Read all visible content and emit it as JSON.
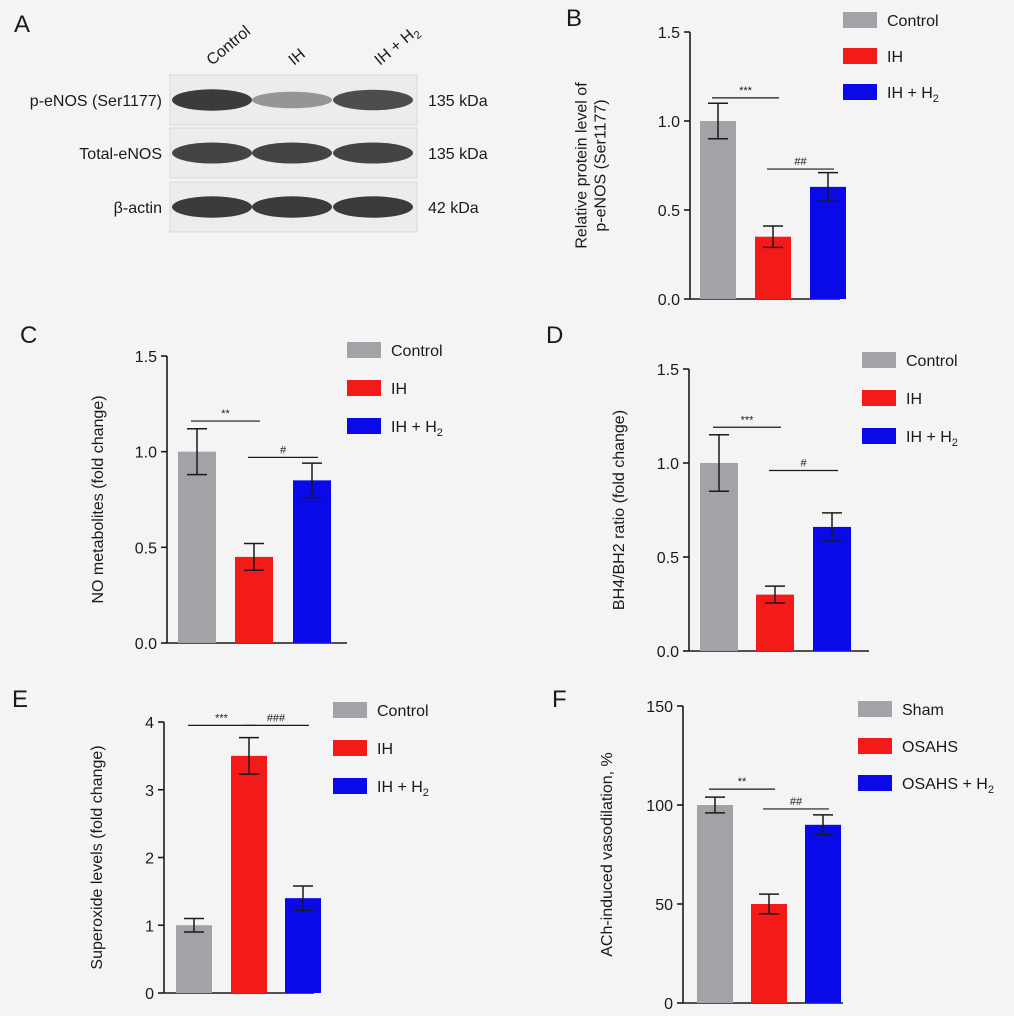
{
  "colors": {
    "control": "#a3a3a7",
    "ih": "#f41a1a",
    "h2": "#0a0ae8",
    "axis": "#1a1a1a"
  },
  "panel_a": {
    "letter": "A",
    "lanes": [
      "Control",
      "IH",
      "IH + H",
      "2"
    ],
    "bands": [
      {
        "protein": "p-eNOS (Ser1177)",
        "mw": "135 kDa",
        "intensity": [
          0.95,
          0.45,
          0.85
        ]
      },
      {
        "protein": "Total-eNOS",
        "mw": "135 kDa",
        "intensity": [
          0.9,
          0.9,
          0.9
        ]
      },
      {
        "protein": "β-actin",
        "mw": "42 kDa",
        "intensity": [
          0.95,
          0.95,
          0.95
        ]
      }
    ]
  },
  "chart_data": [
    {
      "letter": "B",
      "type": "bar",
      "categories": [
        "Control",
        "IH",
        "IH + H2"
      ],
      "values": [
        1.0,
        0.35,
        0.63
      ],
      "errors": [
        0.1,
        0.06,
        0.08
      ],
      "ylim": [
        0,
        1.5
      ],
      "yticks": [
        "0.0",
        "0.5",
        "1.0",
        "1.5"
      ],
      "ylabel": [
        "Relative protein level of",
        "p-eNOS (Ser1177)"
      ],
      "legend": [
        {
          "label": "Control",
          "sub": ""
        },
        {
          "label": "IH",
          "sub": ""
        },
        {
          "label": "IH + H",
          "sub": "2"
        }
      ],
      "sig": [
        {
          "from": 0,
          "to": 1,
          "y": 1.13,
          "label": "***"
        },
        {
          "from": 1,
          "to": 2,
          "y": 0.73,
          "label": "##"
        }
      ]
    },
    {
      "letter": "C",
      "type": "bar",
      "categories": [
        "Control",
        "IH",
        "IH + H2"
      ],
      "values": [
        1.0,
        0.45,
        0.85
      ],
      "errors": [
        0.12,
        0.07,
        0.09
      ],
      "ylim": [
        0,
        1.5
      ],
      "yticks": [
        "0.0",
        "0.5",
        "1.0",
        "1.5"
      ],
      "ylabel": [
        "NO metabolites (fold change)"
      ],
      "legend": [
        {
          "label": "Control",
          "sub": ""
        },
        {
          "label": "IH",
          "sub": ""
        },
        {
          "label": "IH + H",
          "sub": "2"
        }
      ],
      "sig": [
        {
          "from": 0,
          "to": 1,
          "y": 1.16,
          "label": "**"
        },
        {
          "from": 1,
          "to": 2,
          "y": 0.97,
          "label": "#"
        }
      ]
    },
    {
      "letter": "D",
      "type": "bar",
      "categories": [
        "Control",
        "IH",
        "IH + H2"
      ],
      "values": [
        1.0,
        0.3,
        0.66
      ],
      "errors": [
        0.15,
        0.045,
        0.075
      ],
      "ylim": [
        0,
        1.5
      ],
      "yticks": [
        "0.0",
        "0.5",
        "1.0",
        "1.5"
      ],
      "ylabel": [
        "BH4/BH2 ratio (fold change)"
      ],
      "legend": [
        {
          "label": "Control",
          "sub": ""
        },
        {
          "label": "IH",
          "sub": ""
        },
        {
          "label": "IH + H",
          "sub": "2"
        }
      ],
      "sig": [
        {
          "from": 0,
          "to": 1,
          "y": 1.19,
          "label": "***"
        },
        {
          "from": 1,
          "to": 2,
          "y": 0.96,
          "label": "#"
        }
      ]
    },
    {
      "letter": "E",
      "type": "bar",
      "categories": [
        "Control",
        "IH",
        "IH + H2"
      ],
      "values": [
        1.0,
        3.5,
        1.4
      ],
      "errors": [
        0.1,
        0.27,
        0.18
      ],
      "ylim": [
        0,
        4
      ],
      "yticks": [
        "0",
        "1",
        "2",
        "3",
        "4"
      ],
      "ylabel": [
        "Superoxide levels (fold change)"
      ],
      "legend": [
        {
          "label": "Control",
          "sub": ""
        },
        {
          "label": "IH",
          "sub": ""
        },
        {
          "label": "IH + H",
          "sub": "2"
        }
      ],
      "sig": [
        {
          "from": 0,
          "to": 1,
          "y": 3.95,
          "label": "***"
        },
        {
          "from": 1,
          "to": 2,
          "y": 3.95,
          "label": "###"
        }
      ]
    },
    {
      "letter": "F",
      "type": "bar",
      "categories": [
        "Sham",
        "OSAHS",
        "OSAHS + H2"
      ],
      "values": [
        100,
        50,
        90
      ],
      "errors": [
        4,
        5,
        5
      ],
      "ylim": [
        0,
        150
      ],
      "yticks": [
        "0",
        "50",
        "100",
        "150"
      ],
      "ylabel": [
        "ACh-induced vasodilation, %"
      ],
      "legend": [
        {
          "label": "Sham",
          "sub": ""
        },
        {
          "label": "OSAHS",
          "sub": ""
        },
        {
          "label": "OSAHS + H",
          "sub": "2"
        }
      ],
      "sig": [
        {
          "from": 0,
          "to": 1,
          "y": 108,
          "label": "**"
        },
        {
          "from": 1,
          "to": 2,
          "y": 98,
          "label": "##"
        }
      ]
    }
  ]
}
